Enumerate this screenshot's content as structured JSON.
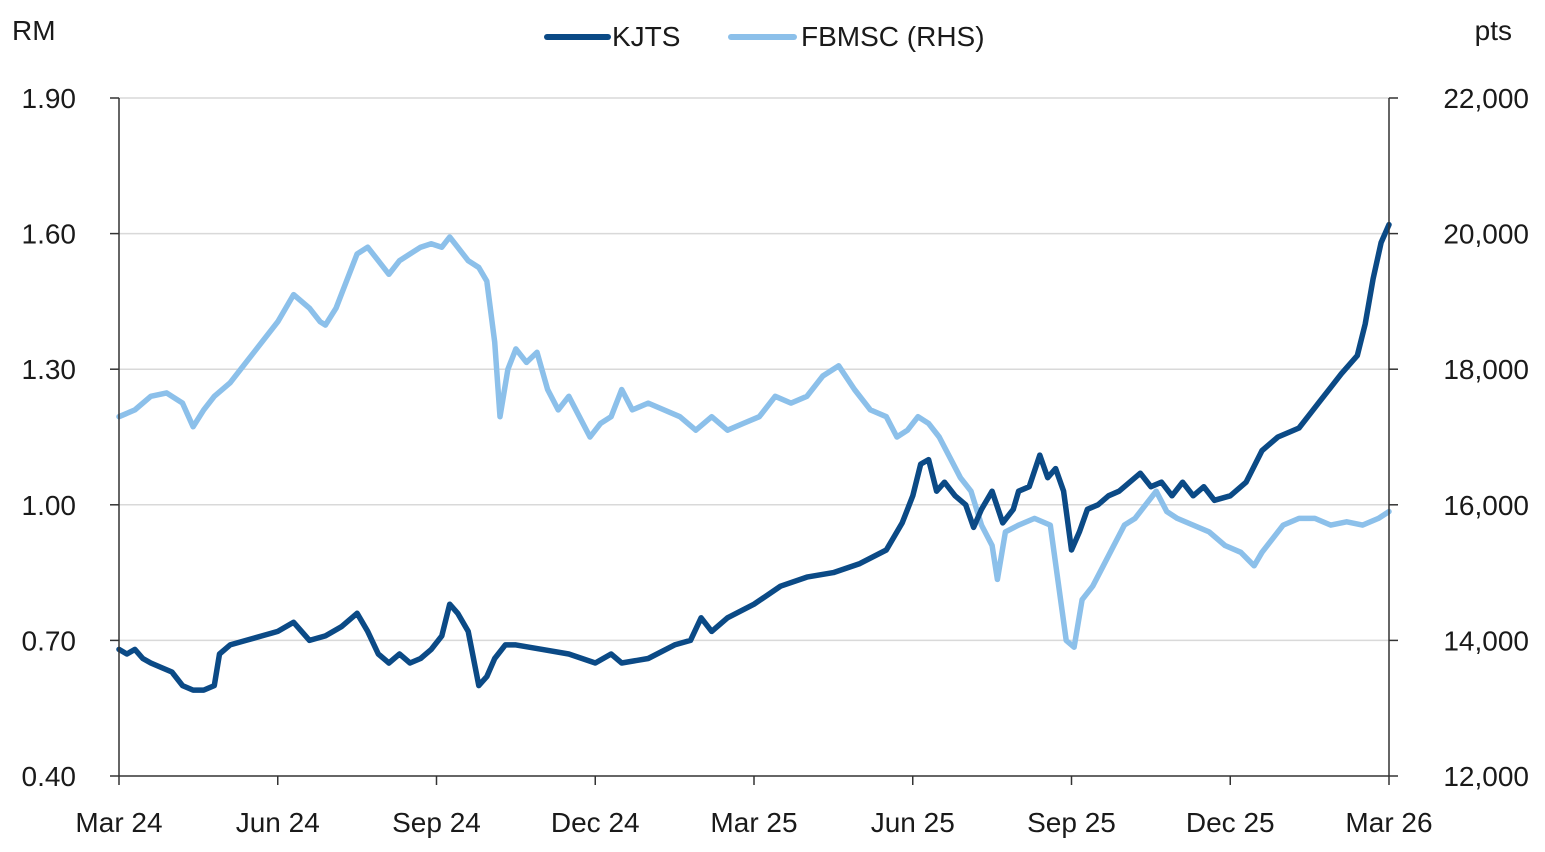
{
  "chart_data": {
    "type": "line",
    "title": "",
    "left_unit": "RM",
    "right_unit": "pts",
    "x_tick_labels": [
      "Mar 24",
      "Jun 24",
      "Sep 24",
      "Dec 24",
      "Mar 25",
      "Jun 25",
      "Sep 25",
      "Dec 25",
      "Mar 26"
    ],
    "x_range": [
      0,
      24
    ],
    "left_axis": {
      "min": 0.4,
      "max": 1.9,
      "ticks": [
        0.4,
        0.7,
        1.0,
        1.3,
        1.6,
        1.9
      ],
      "tick_labels": [
        "0.40",
        "0.70",
        "1.00",
        "1.30",
        "1.60",
        "1.90"
      ]
    },
    "right_axis": {
      "min": 12000,
      "max": 22000,
      "ticks": [
        12000,
        14000,
        16000,
        18000,
        20000,
        22000
      ],
      "tick_labels": [
        "12,000",
        "14,000",
        "16,000",
        "18,000",
        "20,000",
        "22,000"
      ]
    },
    "grid": true,
    "legend_position": "top-center",
    "series": [
      {
        "name": "KJTS",
        "axis": "left",
        "color": "#0b4a86",
        "points": [
          [
            0.0,
            0.68
          ],
          [
            0.15,
            0.67
          ],
          [
            0.3,
            0.68
          ],
          [
            0.45,
            0.66
          ],
          [
            0.6,
            0.65
          ],
          [
            0.8,
            0.64
          ],
          [
            1.0,
            0.63
          ],
          [
            1.2,
            0.6
          ],
          [
            1.4,
            0.59
          ],
          [
            1.6,
            0.59
          ],
          [
            1.8,
            0.6
          ],
          [
            1.9,
            0.67
          ],
          [
            2.1,
            0.69
          ],
          [
            2.4,
            0.7
          ],
          [
            2.7,
            0.71
          ],
          [
            3.0,
            0.72
          ],
          [
            3.3,
            0.74
          ],
          [
            3.6,
            0.7
          ],
          [
            3.9,
            0.71
          ],
          [
            4.2,
            0.73
          ],
          [
            4.5,
            0.76
          ],
          [
            4.7,
            0.72
          ],
          [
            4.9,
            0.67
          ],
          [
            5.1,
            0.65
          ],
          [
            5.3,
            0.67
          ],
          [
            5.5,
            0.65
          ],
          [
            5.7,
            0.66
          ],
          [
            5.9,
            0.68
          ],
          [
            6.1,
            0.71
          ],
          [
            6.25,
            0.78
          ],
          [
            6.4,
            0.76
          ],
          [
            6.6,
            0.72
          ],
          [
            6.8,
            0.6
          ],
          [
            6.95,
            0.62
          ],
          [
            7.1,
            0.66
          ],
          [
            7.3,
            0.69
          ],
          [
            7.5,
            0.69
          ],
          [
            8.0,
            0.68
          ],
          [
            8.5,
            0.67
          ],
          [
            9.0,
            0.65
          ],
          [
            9.3,
            0.67
          ],
          [
            9.5,
            0.65
          ],
          [
            10.0,
            0.66
          ],
          [
            10.5,
            0.69
          ],
          [
            10.8,
            0.7
          ],
          [
            11.0,
            0.75
          ],
          [
            11.2,
            0.72
          ],
          [
            11.5,
            0.75
          ],
          [
            12.0,
            0.78
          ],
          [
            12.5,
            0.82
          ],
          [
            13.0,
            0.84
          ],
          [
            13.5,
            0.85
          ],
          [
            14.0,
            0.87
          ],
          [
            14.5,
            0.9
          ],
          [
            14.8,
            0.96
          ],
          [
            15.0,
            1.02
          ],
          [
            15.15,
            1.09
          ],
          [
            15.3,
            1.1
          ],
          [
            15.45,
            1.03
          ],
          [
            15.6,
            1.05
          ],
          [
            15.8,
            1.02
          ],
          [
            16.0,
            1.0
          ],
          [
            16.15,
            0.95
          ],
          [
            16.3,
            0.99
          ],
          [
            16.5,
            1.03
          ],
          [
            16.7,
            0.96
          ],
          [
            16.9,
            0.99
          ],
          [
            17.0,
            1.03
          ],
          [
            17.2,
            1.04
          ],
          [
            17.4,
            1.11
          ],
          [
            17.55,
            1.06
          ],
          [
            17.7,
            1.08
          ],
          [
            17.85,
            1.03
          ],
          [
            18.0,
            0.9
          ],
          [
            18.15,
            0.94
          ],
          [
            18.3,
            0.99
          ],
          [
            18.5,
            1.0
          ],
          [
            18.7,
            1.02
          ],
          [
            18.9,
            1.03
          ],
          [
            19.1,
            1.05
          ],
          [
            19.3,
            1.07
          ],
          [
            19.5,
            1.04
          ],
          [
            19.7,
            1.05
          ],
          [
            19.9,
            1.02
          ],
          [
            20.1,
            1.05
          ],
          [
            20.3,
            1.02
          ],
          [
            20.5,
            1.04
          ],
          [
            20.7,
            1.01
          ],
          [
            21.0,
            1.02
          ],
          [
            21.3,
            1.05
          ],
          [
            21.6,
            1.12
          ],
          [
            21.9,
            1.15
          ],
          [
            22.1,
            1.16
          ],
          [
            22.3,
            1.17
          ],
          [
            22.5,
            1.2
          ],
          [
            22.7,
            1.23
          ],
          [
            22.9,
            1.26
          ],
          [
            23.1,
            1.29
          ],
          [
            23.25,
            1.31
          ],
          [
            23.4,
            1.33
          ],
          [
            23.55,
            1.4
          ],
          [
            23.7,
            1.5
          ],
          [
            23.85,
            1.58
          ],
          [
            24.0,
            1.62
          ]
        ]
      },
      {
        "name": "FBMSC (RHS)",
        "axis": "right",
        "color": "#8cc0ea",
        "points": [
          [
            0.0,
            17300
          ],
          [
            0.3,
            17400
          ],
          [
            0.6,
            17600
          ],
          [
            0.9,
            17650
          ],
          [
            1.2,
            17500
          ],
          [
            1.4,
            17150
          ],
          [
            1.6,
            17400
          ],
          [
            1.8,
            17600
          ],
          [
            2.1,
            17800
          ],
          [
            2.4,
            18100
          ],
          [
            2.7,
            18400
          ],
          [
            3.0,
            18700
          ],
          [
            3.3,
            19100
          ],
          [
            3.6,
            18900
          ],
          [
            3.8,
            18700
          ],
          [
            3.9,
            18650
          ],
          [
            4.1,
            18900
          ],
          [
            4.3,
            19300
          ],
          [
            4.5,
            19700
          ],
          [
            4.7,
            19800
          ],
          [
            4.9,
            19600
          ],
          [
            5.1,
            19400
          ],
          [
            5.3,
            19600
          ],
          [
            5.5,
            19700
          ],
          [
            5.7,
            19800
          ],
          [
            5.9,
            19850
          ],
          [
            6.1,
            19800
          ],
          [
            6.25,
            19950
          ],
          [
            6.4,
            19800
          ],
          [
            6.6,
            19600
          ],
          [
            6.8,
            19500
          ],
          [
            6.95,
            19300
          ],
          [
            7.1,
            18400
          ],
          [
            7.2,
            17300
          ],
          [
            7.35,
            18000
          ],
          [
            7.5,
            18300
          ],
          [
            7.7,
            18100
          ],
          [
            7.9,
            18250
          ],
          [
            8.1,
            17700
          ],
          [
            8.3,
            17400
          ],
          [
            8.5,
            17600
          ],
          [
            8.7,
            17300
          ],
          [
            8.9,
            17000
          ],
          [
            9.1,
            17200
          ],
          [
            9.3,
            17300
          ],
          [
            9.5,
            17700
          ],
          [
            9.7,
            17400
          ],
          [
            10.0,
            17500
          ],
          [
            10.3,
            17400
          ],
          [
            10.6,
            17300
          ],
          [
            10.9,
            17100
          ],
          [
            11.2,
            17300
          ],
          [
            11.5,
            17100
          ],
          [
            11.8,
            17200
          ],
          [
            12.1,
            17300
          ],
          [
            12.4,
            17600
          ],
          [
            12.7,
            17500
          ],
          [
            13.0,
            17600
          ],
          [
            13.3,
            17900
          ],
          [
            13.6,
            18050
          ],
          [
            13.9,
            17700
          ],
          [
            14.2,
            17400
          ],
          [
            14.5,
            17300
          ],
          [
            14.7,
            17000
          ],
          [
            14.9,
            17100
          ],
          [
            15.1,
            17300
          ],
          [
            15.3,
            17200
          ],
          [
            15.5,
            17000
          ],
          [
            15.7,
            16700
          ],
          [
            15.9,
            16400
          ],
          [
            16.1,
            16200
          ],
          [
            16.3,
            15700
          ],
          [
            16.5,
            15400
          ],
          [
            16.6,
            14900
          ],
          [
            16.75,
            15600
          ],
          [
            17.0,
            15700
          ],
          [
            17.3,
            15800
          ],
          [
            17.6,
            15700
          ],
          [
            17.9,
            14000
          ],
          [
            18.05,
            13900
          ],
          [
            18.2,
            14600
          ],
          [
            18.4,
            14800
          ],
          [
            18.6,
            15100
          ],
          [
            18.8,
            15400
          ],
          [
            19.0,
            15700
          ],
          [
            19.2,
            15800
          ],
          [
            19.4,
            16000
          ],
          [
            19.6,
            16200
          ],
          [
            19.8,
            15900
          ],
          [
            20.0,
            15800
          ],
          [
            20.3,
            15700
          ],
          [
            20.6,
            15600
          ],
          [
            20.9,
            15400
          ],
          [
            21.2,
            15300
          ],
          [
            21.45,
            15100
          ],
          [
            21.6,
            15300
          ],
          [
            21.8,
            15500
          ],
          [
            22.0,
            15700
          ],
          [
            22.3,
            15800
          ],
          [
            22.6,
            15800
          ],
          [
            22.9,
            15700
          ],
          [
            23.2,
            15750
          ],
          [
            23.5,
            15700
          ],
          [
            23.8,
            15800
          ],
          [
            24.0,
            15900
          ]
        ]
      }
    ]
  }
}
